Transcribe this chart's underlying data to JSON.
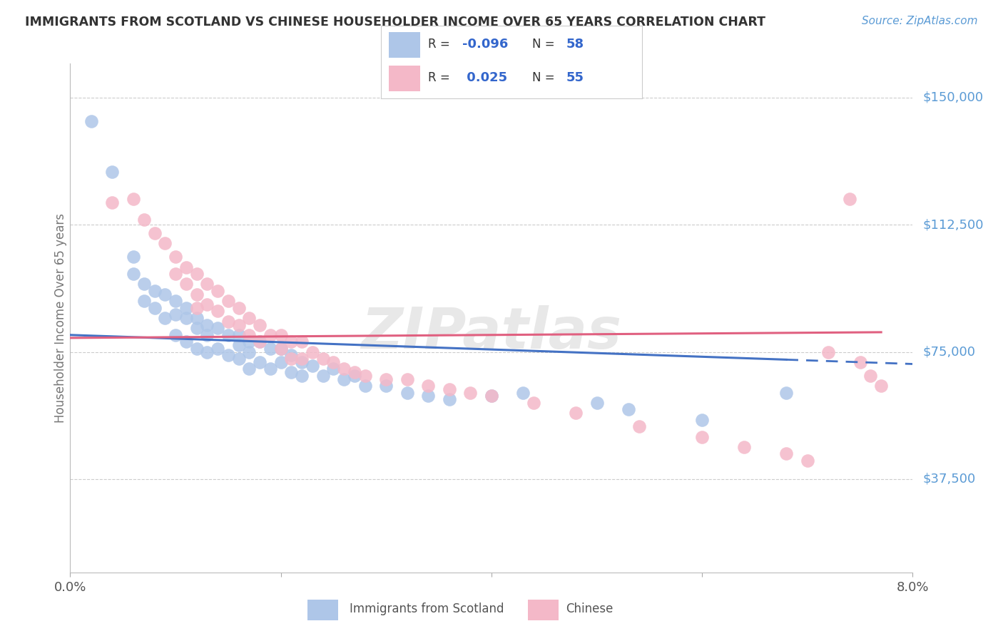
{
  "title": "IMMIGRANTS FROM SCOTLAND VS CHINESE HOUSEHOLDER INCOME OVER 65 YEARS CORRELATION CHART",
  "source": "Source: ZipAtlas.com",
  "ylabel": "Householder Income Over 65 years",
  "yticks": [
    0,
    37500,
    75000,
    112500,
    150000
  ],
  "ytick_labels": [
    "",
    "$37,500",
    "$75,000",
    "$112,500",
    "$150,000"
  ],
  "xmin": 0.0,
  "xmax": 0.08,
  "ymin": 10000,
  "ymax": 160000,
  "series1_color": "#aec6e8",
  "series2_color": "#f4b8c8",
  "trend1_color": "#4472c4",
  "trend2_color": "#e06080",
  "title_color": "#333333",
  "source_color": "#5b9bd5",
  "axis_label_color": "#777777",
  "ytick_color": "#5b9bd5",
  "grid_color": "#cccccc",
  "background_color": "#ffffff",
  "series1_R": -0.096,
  "series1_N": 58,
  "series2_R": 0.025,
  "series2_N": 55,
  "series1_x": [
    0.002,
    0.004,
    0.006,
    0.006,
    0.007,
    0.007,
    0.008,
    0.008,
    0.009,
    0.009,
    0.01,
    0.01,
    0.01,
    0.011,
    0.011,
    0.011,
    0.012,
    0.012,
    0.012,
    0.013,
    0.013,
    0.013,
    0.014,
    0.014,
    0.015,
    0.015,
    0.016,
    0.016,
    0.016,
    0.017,
    0.017,
    0.017,
    0.018,
    0.018,
    0.019,
    0.019,
    0.02,
    0.02,
    0.021,
    0.021,
    0.022,
    0.022,
    0.023,
    0.024,
    0.025,
    0.026,
    0.027,
    0.028,
    0.03,
    0.032,
    0.034,
    0.036,
    0.04,
    0.043,
    0.05,
    0.053,
    0.06,
    0.068
  ],
  "series1_y": [
    143000,
    128000,
    103000,
    98000,
    95000,
    90000,
    93000,
    88000,
    92000,
    85000,
    90000,
    86000,
    80000,
    88000,
    85000,
    78000,
    85000,
    82000,
    76000,
    83000,
    80000,
    75000,
    82000,
    76000,
    80000,
    74000,
    80000,
    77000,
    73000,
    78000,
    75000,
    70000,
    78000,
    72000,
    76000,
    70000,
    76000,
    72000,
    74000,
    69000,
    72000,
    68000,
    71000,
    68000,
    70000,
    67000,
    68000,
    65000,
    65000,
    63000,
    62000,
    61000,
    62000,
    63000,
    60000,
    58000,
    55000,
    63000
  ],
  "series2_x": [
    0.004,
    0.006,
    0.007,
    0.008,
    0.009,
    0.01,
    0.01,
    0.011,
    0.011,
    0.012,
    0.012,
    0.012,
    0.013,
    0.013,
    0.014,
    0.014,
    0.015,
    0.015,
    0.016,
    0.016,
    0.017,
    0.017,
    0.018,
    0.018,
    0.019,
    0.02,
    0.02,
    0.021,
    0.021,
    0.022,
    0.022,
    0.023,
    0.024,
    0.025,
    0.026,
    0.027,
    0.028,
    0.03,
    0.032,
    0.034,
    0.036,
    0.038,
    0.04,
    0.044,
    0.048,
    0.054,
    0.06,
    0.064,
    0.068,
    0.07,
    0.072,
    0.074,
    0.075,
    0.076,
    0.077
  ],
  "series2_y": [
    119000,
    120000,
    114000,
    110000,
    107000,
    103000,
    98000,
    100000,
    95000,
    98000,
    92000,
    88000,
    95000,
    89000,
    93000,
    87000,
    90000,
    84000,
    88000,
    83000,
    85000,
    80000,
    83000,
    78000,
    80000,
    80000,
    76000,
    78000,
    73000,
    78000,
    73000,
    75000,
    73000,
    72000,
    70000,
    69000,
    68000,
    67000,
    67000,
    65000,
    64000,
    63000,
    62000,
    60000,
    57000,
    53000,
    50000,
    47000,
    45000,
    43000,
    75000,
    120000,
    72000,
    68000,
    65000
  ]
}
